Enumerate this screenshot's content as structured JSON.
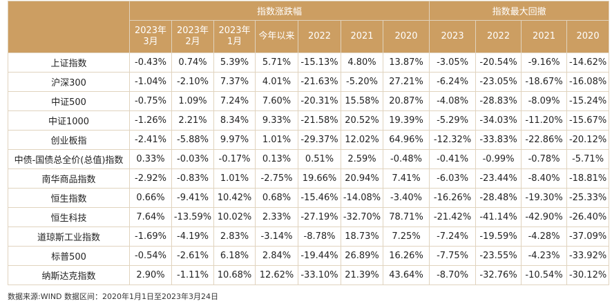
{
  "table": {
    "groups": [
      "指数涨跌幅",
      "指数最大回撤"
    ],
    "columns": [
      [
        "2023年",
        "3月"
      ],
      [
        "2023年",
        "2月"
      ],
      [
        "2023年",
        "1月"
      ],
      [
        "今年以来"
      ],
      [
        "2022"
      ],
      [
        "2021"
      ],
      [
        "2020"
      ],
      [
        "2023"
      ],
      [
        "2022"
      ],
      [
        "2021"
      ],
      [
        "2020"
      ]
    ],
    "rows": [
      {
        "name": "上证指数",
        "values": [
          "-0.43%",
          "0.74%",
          "5.39%",
          "5.71%",
          "-15.13%",
          "4.80%",
          "13.87%",
          "-3.05%",
          "-20.54%",
          "-9.16%",
          "-14.62%"
        ]
      },
      {
        "name": "沪深300",
        "values": [
          "-1.04%",
          "-2.10%",
          "7.37%",
          "4.01%",
          "-21.63%",
          "-5.20%",
          "27.21%",
          "-6.24%",
          "-23.05%",
          "-18.67%",
          "-16.08%"
        ]
      },
      {
        "name": "中证500",
        "values": [
          "-0.75%",
          "1.09%",
          "7.24%",
          "7.60%",
          "-20.31%",
          "15.58%",
          "20.87%",
          "-4.08%",
          "-28.83%",
          "-8.09%",
          "-15.24%"
        ]
      },
      {
        "name": "中证1000",
        "values": [
          "-1.26%",
          "2.21%",
          "8.34%",
          "9.33%",
          "-21.58%",
          "20.52%",
          "19.39%",
          "-5.29%",
          "-34.03%",
          "-11.20%",
          "-15.67%"
        ]
      },
      {
        "name": "创业板指",
        "values": [
          "-2.41%",
          "-5.88%",
          "9.97%",
          "1.01%",
          "-29.37%",
          "12.02%",
          "64.96%",
          "-12.32%",
          "-33.83%",
          "-22.86%",
          "-20.12%"
        ]
      },
      {
        "name": "中债-国债总全价(总值)指数",
        "values": [
          "0.33%",
          "-0.03%",
          "-0.17%",
          "0.13%",
          "0.51%",
          "2.59%",
          "-0.48%",
          "-0.41%",
          "-0.99%",
          "-0.78%",
          "-5.71%"
        ]
      },
      {
        "name": "南华商品指数",
        "values": [
          "-2.92%",
          "-0.83%",
          "1.01%",
          "-2.75%",
          "19.66%",
          "20.94%",
          "7.41%",
          "-6.03%",
          "-23.44%",
          "-8.40%",
          "-18.81%"
        ]
      },
      {
        "name": "恒生指数",
        "values": [
          "0.66%",
          "-9.41%",
          "10.42%",
          "0.68%",
          "-15.46%",
          "-14.08%",
          "-3.40%",
          "-16.26%",
          "-28.48%",
          "-19.30%",
          "-25.33%"
        ]
      },
      {
        "name": "恒生科技",
        "values": [
          "7.64%",
          "-13.59%",
          "10.02%",
          "2.33%",
          "-27.19%",
          "-32.70%",
          "78.71%",
          "-21.42%",
          "-41.14%",
          "-42.90%",
          "-26.40%"
        ]
      },
      {
        "name": "道琼斯工业指数",
        "values": [
          "-1.69%",
          "-4.19%",
          "2.83%",
          "-3.14%",
          "-8.78%",
          "18.73%",
          "7.25%",
          "-7.24%",
          "-19.59%",
          "-4.28%",
          "-37.09%"
        ]
      },
      {
        "name": "标普500",
        "values": [
          "-0.54%",
          "-2.61%",
          "6.18%",
          "2.84%",
          "-19.44%",
          "26.89%",
          "16.26%",
          "-7.75%",
          "-23.55%",
          "-4.23%",
          "-33.92%"
        ]
      },
      {
        "name": "纳斯达克指数",
        "values": [
          "2.90%",
          "-1.11%",
          "10.68%",
          "12.62%",
          "-33.10%",
          "21.39%",
          "43.64%",
          "-8.70%",
          "-32.76%",
          "-10.54%",
          "-30.12%"
        ]
      }
    ]
  },
  "source_note": "数据来源:WIND 数据区间：2020年1月1日至2023年3月24日",
  "colors": {
    "header_bg": "#cc9e62",
    "header_text": "#ffffff",
    "border": "#e0d3be"
  }
}
